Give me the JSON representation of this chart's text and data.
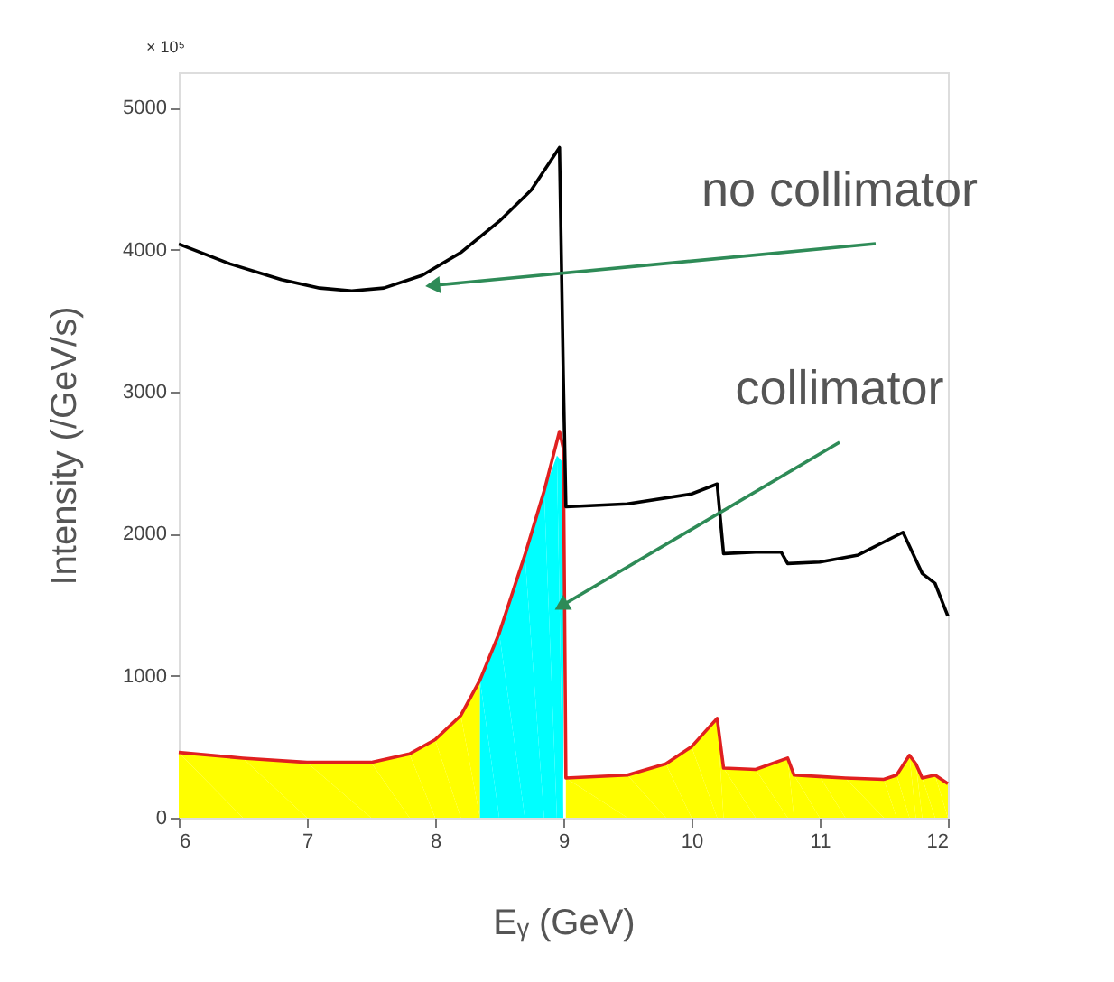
{
  "chart_data": {
    "type": "line",
    "xlabel": "Eᵧ (GeV)",
    "ylabel": "Intensity (/GeV/s)",
    "annotations": [
      "× 10⁵",
      {
        "text": "no collimator",
        "x": 8.0,
        "y": 3750
      },
      {
        "text": "collimator",
        "x": 9.0,
        "y": 1500
      }
    ],
    "xlim": [
      6,
      12
    ],
    "ylim": [
      0,
      5250
    ],
    "xticks": [
      6,
      7,
      8,
      9,
      10,
      11,
      12
    ],
    "yticks": [
      0,
      1000,
      2000,
      3000,
      4000,
      5000
    ],
    "grid": false,
    "marker": "none",
    "line_style": "solid",
    "series": [
      {
        "type": "area",
        "color": "#ffff00",
        "x": [
          6,
          6.5,
          7,
          7.5,
          7.8,
          8.0,
          8.2,
          8.35
        ],
        "values": [
          460,
          420,
          390,
          390,
          450,
          550,
          720,
          970
        ]
      },
      {
        "type": "area",
        "color": "#00ffff",
        "x": [
          8.35,
          8.5,
          8.7,
          8.85,
          8.95,
          9.0
        ],
        "values": [
          970,
          1300,
          1850,
          2300,
          2550,
          2500
        ]
      },
      {
        "type": "area",
        "color": "#ffff00",
        "x": [
          9.02,
          9.5,
          9.8,
          10.0,
          10.2,
          10.25,
          10.5,
          10.75,
          10.8,
          11.0,
          11.2,
          11.5,
          11.6,
          11.7,
          11.75,
          11.8,
          11.9,
          12
        ],
        "values": [
          280,
          300,
          380,
          500,
          700,
          350,
          340,
          420,
          300,
          290,
          280,
          270,
          300,
          440,
          380,
          280,
          300,
          240
        ]
      },
      {
        "color": "#e02020",
        "x": [
          6,
          6.5,
          7,
          7.5,
          7.8,
          8.0,
          8.2,
          8.35,
          8.5,
          8.7,
          8.85,
          8.97,
          9.0,
          9.02,
          9.5,
          9.8,
          10.0,
          10.2,
          10.25,
          10.5,
          10.75,
          10.8,
          11.0,
          11.2,
          11.5,
          11.6,
          11.7,
          11.75,
          11.8,
          11.9,
          12
        ],
        "values": [
          460,
          420,
          390,
          390,
          450,
          550,
          720,
          970,
          1300,
          1850,
          2300,
          2720,
          2600,
          280,
          300,
          380,
          500,
          700,
          350,
          340,
          420,
          300,
          290,
          280,
          270,
          300,
          440,
          380,
          280,
          300,
          240
        ]
      },
      {
        "color": "#000000",
        "x": [
          6,
          6.4,
          6.8,
          7.1,
          7.35,
          7.6,
          7.9,
          8.2,
          8.5,
          8.75,
          8.97,
          9.0,
          9.02,
          9.5,
          10.0,
          10.2,
          10.25,
          10.5,
          10.7,
          10.75,
          11.0,
          11.3,
          11.65,
          11.8,
          11.9,
          12
        ],
        "values": [
          4040,
          3900,
          3790,
          3730,
          3710,
          3730,
          3820,
          3980,
          4200,
          4420,
          4720,
          3100,
          2190,
          2210,
          2280,
          2350,
          1860,
          1870,
          1870,
          1790,
          1800,
          1850,
          2010,
          1720,
          1650,
          1420
        ]
      }
    ]
  }
}
